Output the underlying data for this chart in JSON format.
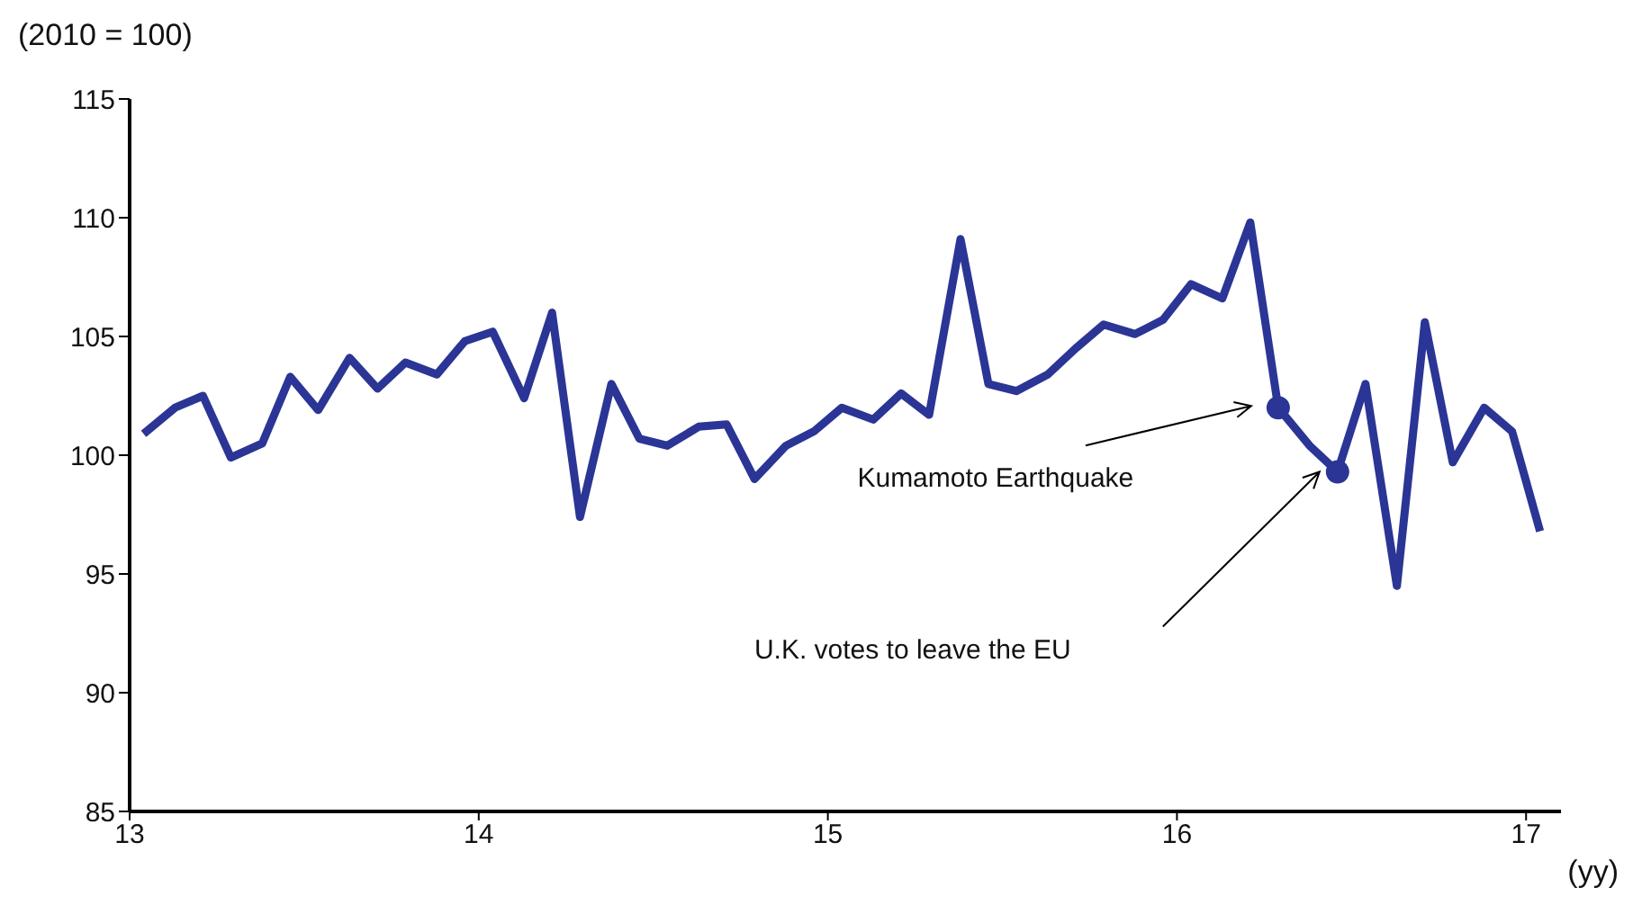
{
  "chart_data": {
    "type": "line",
    "ylabel": "(2010 = 100)",
    "xlabel": "(yy)",
    "x": [
      13.04,
      13.13,
      13.21,
      13.29,
      13.38,
      13.46,
      13.54,
      13.63,
      13.71,
      13.79,
      13.88,
      13.96,
      14.04,
      14.13,
      14.21,
      14.29,
      14.38,
      14.46,
      14.54,
      14.63,
      14.71,
      14.79,
      14.88,
      14.96,
      15.04,
      15.13,
      15.21,
      15.29,
      15.38,
      15.46,
      15.54,
      15.63,
      15.71,
      15.79,
      15.88,
      15.96,
      16.04,
      16.13,
      16.21,
      16.29,
      16.38,
      16.46,
      16.54,
      16.63,
      16.71,
      16.79,
      16.88,
      16.96,
      17.04
    ],
    "series": [
      {
        "color": "#2b3595",
        "values": [
          100.9,
          102.0,
          102.5,
          99.9,
          100.5,
          103.3,
          101.9,
          104.1,
          102.8,
          103.9,
          103.4,
          104.8,
          105.2,
          102.4,
          106.0,
          97.4,
          103.0,
          100.7,
          100.4,
          101.2,
          101.3,
          99.0,
          100.4,
          101.0,
          102.0,
          101.5,
          102.6,
          101.7,
          109.1,
          103.0,
          102.7,
          103.4,
          104.5,
          105.5,
          105.1,
          105.7,
          107.2,
          106.6,
          109.8,
          102.0,
          100.4,
          99.3,
          103.0,
          94.5,
          105.6,
          99.7,
          102.0,
          101.0,
          96.8
        ]
      },
      {
        "type": "scatter",
        "color": "#2b3595",
        "marker": "circle",
        "x": [
          16.29,
          16.46
        ],
        "values": [
          102.0,
          99.3
        ]
      }
    ],
    "xlim": [
      13,
      17.1
    ],
    "xticks": [
      13,
      14,
      15,
      16,
      17
    ],
    "ylim": [
      85,
      115
    ],
    "yticks": [
      85,
      90,
      95,
      100,
      105,
      110,
      115
    ],
    "grid": false,
    "legend": false,
    "marker": "none",
    "line_style": "solid",
    "annotations": [
      "Kumamoto Earthquake",
      "U.K. votes to leave the EU"
    ]
  }
}
